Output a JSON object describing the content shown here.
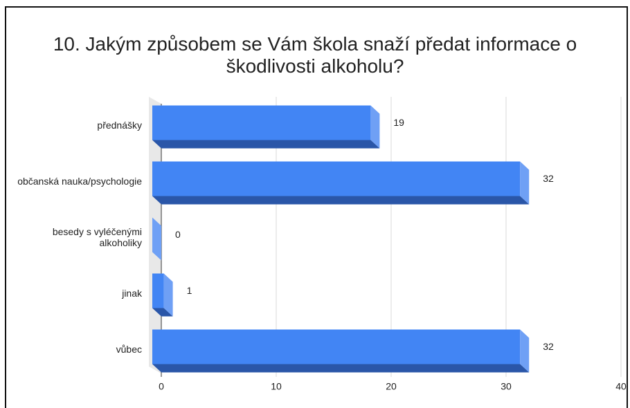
{
  "chart_data": {
    "type": "bar",
    "orientation": "horizontal",
    "title": "10. Jakým způsobem se Vám škola snaží předat informace o škodlivosti alkoholu?",
    "categories": [
      "přednášky",
      "občanská nauka/psychologie",
      "besedy s vyléčenými alkoholiky",
      "jinak",
      "vůbec"
    ],
    "values": [
      19,
      32,
      0,
      1,
      32
    ],
    "color": "#4285f4",
    "xlim": [
      0,
      40
    ],
    "xticks": [
      0,
      10,
      20,
      30,
      40
    ],
    "grid": true
  }
}
